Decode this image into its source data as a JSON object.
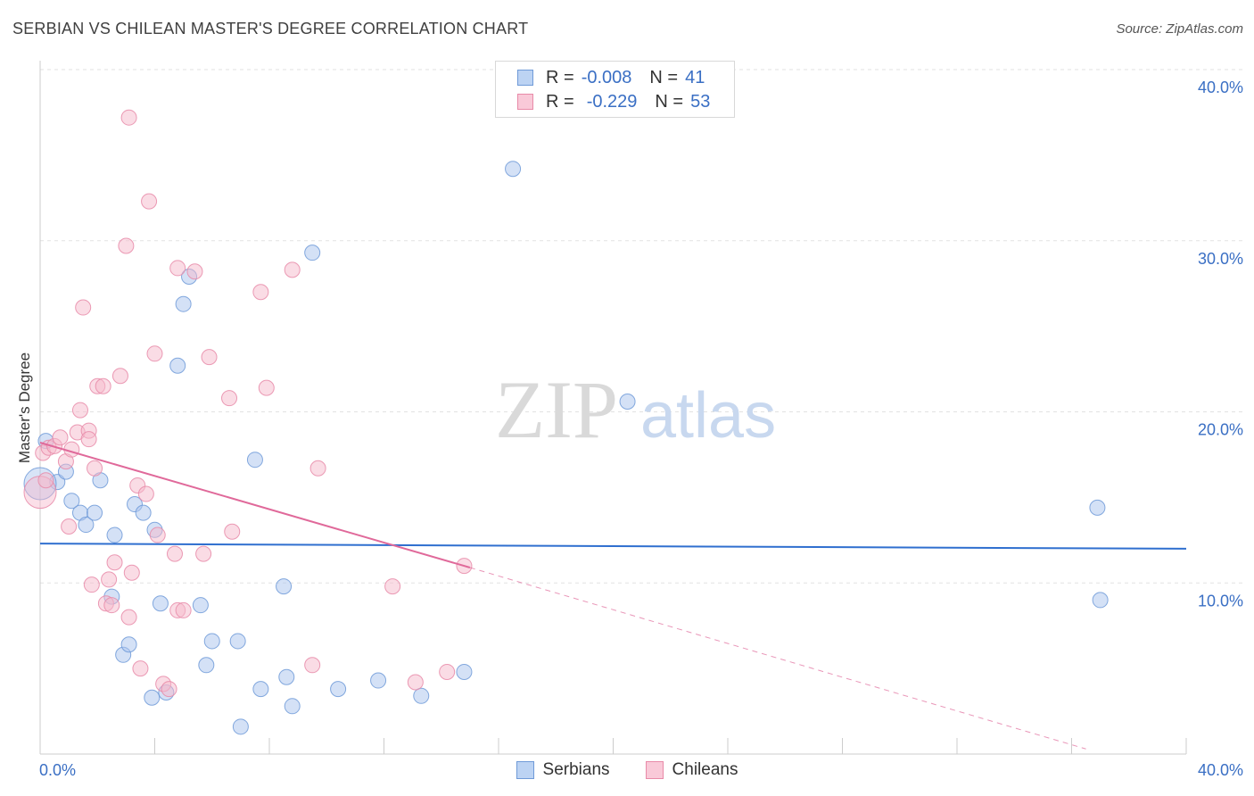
{
  "title": "SERBIAN VS CHILEAN MASTER'S DEGREE CORRELATION CHART",
  "source": "Source: ZipAtlas.com",
  "watermark": {
    "zip": "ZIP",
    "atlas": "atlas"
  },
  "legend": {
    "rows": [
      {
        "r_label": "R =",
        "r_value": "-0.008",
        "n_label": "N =",
        "n_value": "41"
      },
      {
        "r_label": "R =",
        "r_value": "-0.229",
        "n_label": "N =",
        "n_value": "53"
      }
    ]
  },
  "colors": {
    "serbians_fill": "#a9c4ee",
    "serbians_stroke": "#6f9ad8",
    "serbians_line": "#2f6fcf",
    "chileans_fill": "#f6b9cc",
    "chileans_stroke": "#e88aa8",
    "chileans_line": "#e0699a",
    "axis_label": "#3a6fc4",
    "grid": "#e2e2e2"
  },
  "chart_data": {
    "type": "scatter",
    "title": "SERBIAN VS CHILEAN MASTER'S DEGREE CORRELATION CHART",
    "xlabel": "",
    "ylabel": "Master's Degree",
    "xlim": [
      0,
      40
    ],
    "ylim": [
      0,
      40
    ],
    "x_tick_labels": [
      "0.0%",
      "40.0%"
    ],
    "y_ticks": [
      10,
      20,
      30,
      40
    ],
    "y_tick_labels": [
      "10.0%",
      "20.0%",
      "30.0%",
      "40.0%"
    ],
    "grid": "horizontal dashed",
    "legend_position": "top-center",
    "series": [
      {
        "name": "Serbians",
        "r": -0.008,
        "n": 41,
        "trend": {
          "x": [
            0,
            40
          ],
          "y": [
            12.3,
            12.0
          ]
        },
        "points": [
          [
            0.2,
            18.3
          ],
          [
            0.6,
            15.9
          ],
          [
            0.9,
            16.5
          ],
          [
            1.1,
            14.8
          ],
          [
            1.4,
            14.1
          ],
          [
            1.6,
            13.4
          ],
          [
            1.9,
            14.1
          ],
          [
            2.1,
            16.0
          ],
          [
            2.5,
            9.2
          ],
          [
            2.6,
            12.8
          ],
          [
            2.9,
            5.8
          ],
          [
            3.1,
            6.4
          ],
          [
            3.3,
            14.6
          ],
          [
            3.6,
            14.1
          ],
          [
            3.9,
            3.3
          ],
          [
            4.0,
            13.1
          ],
          [
            4.2,
            8.8
          ],
          [
            4.4,
            3.6
          ],
          [
            4.8,
            22.7
          ],
          [
            5.0,
            26.3
          ],
          [
            5.2,
            27.9
          ],
          [
            5.6,
            8.7
          ],
          [
            5.8,
            5.2
          ],
          [
            6.0,
            6.6
          ],
          [
            6.9,
            6.6
          ],
          [
            7.0,
            1.6
          ],
          [
            7.5,
            17.2
          ],
          [
            7.7,
            3.8
          ],
          [
            8.5,
            9.8
          ],
          [
            8.6,
            4.5
          ],
          [
            8.8,
            2.8
          ],
          [
            9.5,
            29.3
          ],
          [
            10.4,
            3.8
          ],
          [
            11.8,
            4.3
          ],
          [
            13.3,
            3.4
          ],
          [
            14.8,
            4.8
          ],
          [
            16.5,
            34.2
          ],
          [
            20.5,
            20.6
          ],
          [
            36.9,
            14.4
          ],
          [
            37.0,
            9.0
          ],
          [
            0.0,
            15.8
          ]
        ]
      },
      {
        "name": "Chileans",
        "r": -0.229,
        "n": 53,
        "trend_solid": {
          "x": [
            0,
            15.0
          ],
          "y": [
            18.2,
            10.9
          ]
        },
        "trend_dashed": {
          "x": [
            15.0,
            36.5
          ],
          "y": [
            10.9,
            0.3
          ]
        },
        "points": [
          [
            0.1,
            17.6
          ],
          [
            0.3,
            17.9
          ],
          [
            0.5,
            18.0
          ],
          [
            0.7,
            18.5
          ],
          [
            0.9,
            17.1
          ],
          [
            1.0,
            13.3
          ],
          [
            1.1,
            17.8
          ],
          [
            1.3,
            18.8
          ],
          [
            1.4,
            20.1
          ],
          [
            1.5,
            26.1
          ],
          [
            1.7,
            18.9
          ],
          [
            1.7,
            18.4
          ],
          [
            1.8,
            9.9
          ],
          [
            1.9,
            16.7
          ],
          [
            2.0,
            21.5
          ],
          [
            2.2,
            21.5
          ],
          [
            2.3,
            8.8
          ],
          [
            2.4,
            10.2
          ],
          [
            2.5,
            8.7
          ],
          [
            2.6,
            11.2
          ],
          [
            2.8,
            22.1
          ],
          [
            3.0,
            29.7
          ],
          [
            3.1,
            8.0
          ],
          [
            3.1,
            37.2
          ],
          [
            3.2,
            10.6
          ],
          [
            3.4,
            15.7
          ],
          [
            3.5,
            5.0
          ],
          [
            3.7,
            15.2
          ],
          [
            3.8,
            32.3
          ],
          [
            4.0,
            23.4
          ],
          [
            4.1,
            12.8
          ],
          [
            4.3,
            4.1
          ],
          [
            4.5,
            3.8
          ],
          [
            4.7,
            11.7
          ],
          [
            4.8,
            28.4
          ],
          [
            4.8,
            8.4
          ],
          [
            5.0,
            8.4
          ],
          [
            5.4,
            28.2
          ],
          [
            5.7,
            11.7
          ],
          [
            5.9,
            23.2
          ],
          [
            6.6,
            20.8
          ],
          [
            6.7,
            13.0
          ],
          [
            7.7,
            27.0
          ],
          [
            7.9,
            21.4
          ],
          [
            8.8,
            28.3
          ],
          [
            9.5,
            5.2
          ],
          [
            9.7,
            16.7
          ],
          [
            12.3,
            9.8
          ],
          [
            13.1,
            4.2
          ],
          [
            14.2,
            4.8
          ],
          [
            14.8,
            11.0
          ],
          [
            0.0,
            15.3
          ],
          [
            0.2,
            16.0
          ]
        ]
      }
    ]
  },
  "bottom_legend": [
    "Serbians",
    "Chileans"
  ]
}
